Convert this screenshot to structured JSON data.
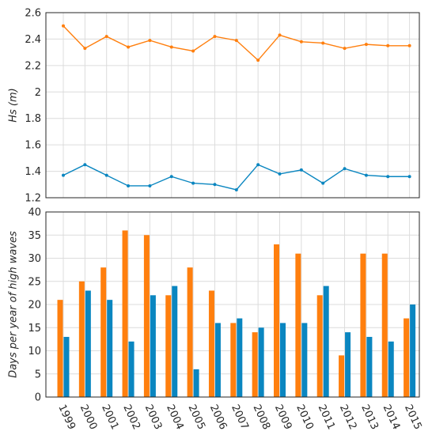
{
  "chart_data": [
    {
      "type": "line",
      "title": "",
      "xlabel": "",
      "ylabel": "Hs (m)",
      "x": [
        1999,
        2000,
        2001,
        2002,
        2003,
        2004,
        2005,
        2006,
        2007,
        2008,
        2009,
        2010,
        2011,
        2012,
        2013,
        2014,
        2015
      ],
      "ylim": [
        1.2,
        2.6
      ],
      "yticks": [
        "1.2",
        "1.4",
        "1.6",
        "1.8",
        "2",
        "2.2",
        "2.4",
        "2.6"
      ],
      "grid": true,
      "series": [
        {
          "color": "#ff7f0e",
          "values": [
            2.5,
            2.33,
            2.42,
            2.34,
            2.39,
            2.34,
            2.31,
            2.42,
            2.39,
            2.24,
            2.43,
            2.38,
            2.37,
            2.33,
            2.36,
            2.35,
            2.35
          ]
        },
        {
          "color": "#0a86c0",
          "values": [
            1.37,
            1.45,
            1.37,
            1.29,
            1.29,
            1.36,
            1.31,
            1.3,
            1.26,
            1.45,
            1.38,
            1.41,
            1.31,
            1.42,
            1.37,
            1.36,
            1.36
          ]
        }
      ]
    },
    {
      "type": "bar",
      "title": "",
      "xlabel": "",
      "ylabel": "Days per year of high waves",
      "categories": [
        "1999",
        "2000",
        "2001",
        "2002",
        "2003",
        "2004",
        "2005",
        "2006",
        "2007",
        "2008",
        "2009",
        "2010",
        "2011",
        "2012",
        "2013",
        "2014",
        "2015"
      ],
      "ylim": [
        0,
        40
      ],
      "yticks": [
        "0",
        "5",
        "10",
        "15",
        "20",
        "25",
        "30",
        "35",
        "40"
      ],
      "grid": true,
      "series": [
        {
          "color": "#ff7f0e",
          "values": [
            21,
            25,
            28,
            36,
            35,
            22,
            28,
            23,
            16,
            14,
            33,
            31,
            22,
            9,
            31,
            31,
            17
          ]
        },
        {
          "color": "#0a86c0",
          "values": [
            13,
            23,
            21,
            12,
            22,
            24,
            6,
            16,
            17,
            15,
            16,
            16,
            24,
            14,
            13,
            12,
            20
          ]
        }
      ]
    }
  ]
}
